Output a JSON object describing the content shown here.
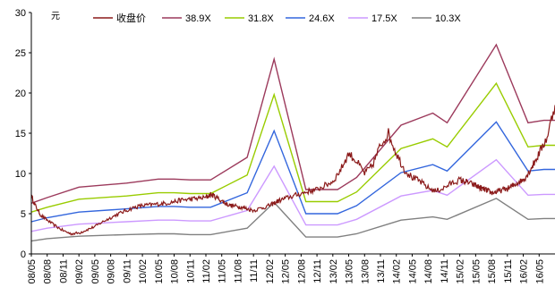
{
  "chart_data": {
    "type": "line",
    "ylabel": "元",
    "ylim": [
      0,
      30
    ],
    "yticks": [
      0,
      5,
      10,
      15,
      20,
      25,
      30
    ],
    "x_tick_labels": [
      "08/05",
      "08/08",
      "08/11",
      "09/02",
      "09/05",
      "09/08",
      "09/11",
      "10/02",
      "10/05",
      "10/08",
      "10/11",
      "11/02",
      "11/05",
      "11/08",
      "11/11",
      "12/02",
      "12/05",
      "12/08",
      "12/11",
      "13/02",
      "13/05",
      "13/08",
      "13/11",
      "14/02",
      "14/05",
      "14/08",
      "14/11",
      "15/02",
      "15/05",
      "15/08",
      "15/11",
      "16/02",
      "16/05"
    ],
    "grid": false,
    "legend_position": "top",
    "series": [
      {
        "name": "收盘价",
        "color": "#8b1a1a",
        "x": [
          0,
          0.3,
          0.6,
          1,
          1.5,
          2,
          2.5,
          3,
          3.5,
          4,
          4.5,
          5,
          5.5,
          6,
          6.5,
          7,
          7.5,
          8,
          8.5,
          9,
          9.5,
          10,
          10.5,
          11,
          11.3,
          11.6,
          12,
          12.3,
          12.6,
          13,
          13.3,
          13.6,
          14,
          14.5,
          15,
          15.3,
          15.6,
          16,
          16.5,
          17,
          17.5,
          18,
          18.5,
          19,
          19.5,
          20,
          20.5,
          21,
          21.5,
          22,
          22.5,
          23,
          23.5,
          24,
          24.5,
          25,
          25.5,
          26,
          26.5,
          27,
          27.3,
          27.6,
          28,
          28.2,
          28.4,
          28.6,
          28.8,
          29,
          29.3,
          29.6,
          30,
          30.3,
          30.6,
          31,
          31.3,
          31.6,
          32,
          32.5,
          33
        ],
        "y": [
          7.2,
          5.8,
          4.8,
          4.2,
          3.5,
          2.9,
          2.5,
          2.6,
          3.0,
          3.4,
          4.0,
          4.5,
          5.0,
          5.4,
          5.8,
          6.0,
          6.1,
          6.2,
          6.3,
          6.5,
          6.7,
          6.8,
          6.9,
          7.0,
          7.4,
          7.1,
          6.6,
          6.2,
          6.0,
          5.9,
          5.8,
          5.6,
          5.4,
          5.7,
          6.0,
          6.3,
          6.6,
          6.9,
          7.2,
          7.5,
          7.8,
          8.0,
          8.5,
          9.0,
          10.5,
          12.5,
          11.5,
          10.0,
          11.0,
          13.5,
          15.0,
          12.5,
          10.5,
          9.5,
          9.0,
          8.2,
          7.8,
          8.2,
          8.8,
          9.2,
          9.0,
          8.8,
          8.5,
          8.3,
          8.1,
          8.0,
          7.8,
          7.6,
          7.7,
          7.9,
          8.1,
          8.4,
          8.8,
          9.2,
          10.0,
          11.0,
          12.5,
          14.5,
          18.5
        ],
        "note_omit": true
      },
      {
        "name": "38.9X",
        "color": "#9c3a5c",
        "x": [
          0,
          1,
          3,
          6,
          8,
          9,
          10,
          11.3,
          13.6,
          15.3,
          17.3,
          19.3,
          20.5,
          23.3,
          25.3,
          26.2,
          29.3,
          31.3,
          32.3,
          33
        ],
        "y": [
          6.3,
          7.0,
          8.3,
          8.8,
          9.3,
          9.3,
          9.2,
          9.2,
          12.0,
          24.2,
          8.0,
          8.0,
          9.5,
          16.0,
          17.5,
          16.3,
          26.0,
          16.3,
          16.6,
          16.6
        ]
      },
      {
        "name": "31.8X",
        "color": "#99cc00",
        "x": [
          0,
          1,
          3,
          6,
          8,
          9,
          10,
          11.3,
          13.6,
          15.3,
          17.3,
          19.3,
          20.5,
          23.3,
          25.3,
          26.2,
          29.3,
          31.3,
          32.3,
          33
        ],
        "y": [
          5.2,
          5.8,
          6.8,
          7.2,
          7.6,
          7.6,
          7.5,
          7.5,
          9.8,
          19.8,
          6.5,
          6.5,
          7.7,
          13.1,
          14.3,
          13.3,
          21.2,
          13.3,
          13.5,
          13.5
        ]
      },
      {
        "name": "24.6X",
        "color": "#3366dd",
        "x": [
          0,
          1,
          3,
          6,
          8,
          9,
          10,
          11.3,
          13.6,
          15.3,
          17.3,
          19.3,
          20.5,
          23.3,
          25.3,
          26.2,
          29.3,
          31.3,
          32.3,
          33
        ],
        "y": [
          4.0,
          4.5,
          5.2,
          5.6,
          5.9,
          5.9,
          5.8,
          5.8,
          7.6,
          15.3,
          5.0,
          5.0,
          6.0,
          10.1,
          11.1,
          10.3,
          16.4,
          10.3,
          10.5,
          10.5
        ]
      },
      {
        "name": "17.5X",
        "color": "#cc99ff",
        "x": [
          0,
          1,
          3,
          6,
          8,
          9,
          10,
          11.3,
          13.6,
          15.3,
          17.3,
          19.3,
          20.5,
          23.3,
          25.3,
          26.2,
          29.3,
          31.3,
          32.3,
          33
        ],
        "y": [
          2.8,
          3.2,
          3.7,
          4.0,
          4.2,
          4.2,
          4.1,
          4.1,
          5.4,
          10.9,
          3.6,
          3.6,
          4.3,
          7.2,
          7.9,
          7.3,
          11.7,
          7.3,
          7.4,
          7.4
        ]
      },
      {
        "name": "10.3X",
        "color": "#808080",
        "x": [
          0,
          1,
          3,
          6,
          8,
          9,
          10,
          11.3,
          13.6,
          15.3,
          17.3,
          19.3,
          20.5,
          23.3,
          25.3,
          26.2,
          29.3,
          31.3,
          32.3,
          33
        ],
        "y": [
          1.6,
          1.9,
          2.2,
          2.4,
          2.5,
          2.5,
          2.4,
          2.4,
          3.2,
          6.4,
          2.1,
          2.1,
          2.5,
          4.2,
          4.6,
          4.3,
          6.9,
          4.3,
          4.4,
          4.4
        ]
      }
    ]
  }
}
